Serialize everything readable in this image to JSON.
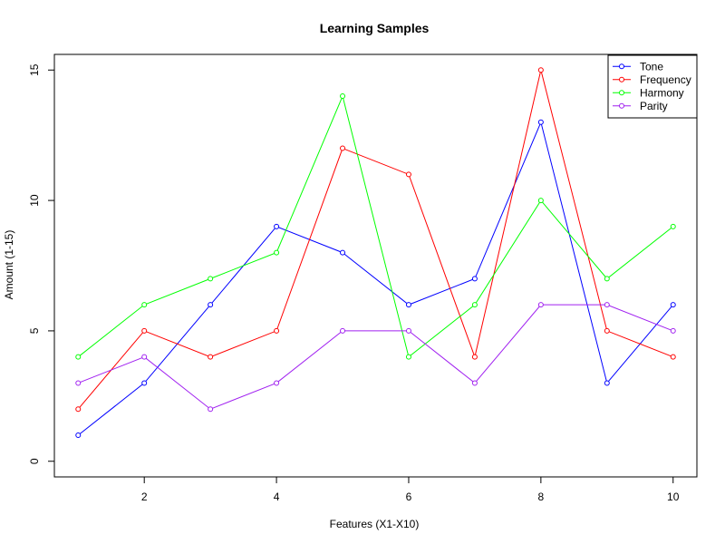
{
  "chart_data": {
    "type": "line",
    "title": "Learning Samples",
    "xlabel": "Features (X1-X10)",
    "ylabel": "Amount (1-15)",
    "x": [
      1,
      2,
      3,
      4,
      5,
      6,
      7,
      8,
      9,
      10
    ],
    "xlim": [
      0.64,
      10.36
    ],
    "ylim": [
      -0.6,
      15.6
    ],
    "x_ticks": [
      2,
      4,
      6,
      8,
      10
    ],
    "y_ticks": [
      0,
      5,
      10,
      15
    ],
    "grid": false,
    "legend_position": "top-right",
    "series": [
      {
        "name": "Tone",
        "color": "#0000ff",
        "values": [
          1,
          3,
          6,
          9,
          8,
          6,
          7,
          13,
          3,
          6
        ]
      },
      {
        "name": "Frequency",
        "color": "#ff0000",
        "values": [
          2,
          5,
          4,
          5,
          12,
          11,
          4,
          15,
          5,
          4
        ]
      },
      {
        "name": "Harmony",
        "color": "#00ff00",
        "values": [
          4,
          6,
          7,
          8,
          14,
          4,
          6,
          10,
          7,
          9
        ]
      },
      {
        "name": "Parity",
        "color": "#a020f0",
        "values": [
          3,
          4,
          2,
          3,
          5,
          5,
          3,
          6,
          6,
          5
        ]
      }
    ]
  }
}
